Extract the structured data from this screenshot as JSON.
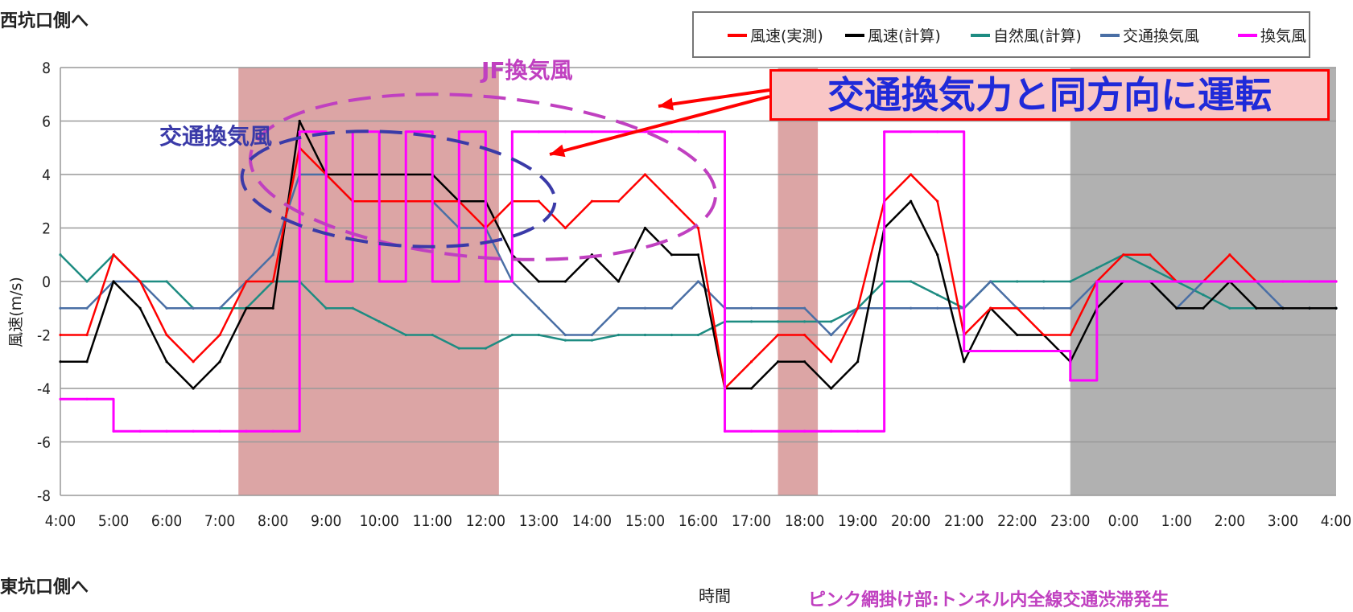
{
  "labels": {
    "west_portal": "西坑口側へ",
    "east_portal": "東坑口側へ",
    "jf_wind": "JF換気風",
    "traffic_wind": "交通換気風",
    "callout": "交通換気力と同方向に運転",
    "footnote": "ピンク網掛け部:トンネル内全線交通渋滞発生"
  },
  "colors": {
    "measured": "#ff0000",
    "calc": "#000000",
    "natural": "#1e8c82",
    "traffic": "#4a6fa5",
    "ventilation": "#ff00ff",
    "congestion_band": "#d89b9b",
    "night_band": "#a9a9a9",
    "annotation_blue": "#3a3aa8",
    "annotation_purple": "#c040c0"
  },
  "chart_data": {
    "type": "line",
    "ylabel": "風速(m/s)",
    "xlabel": "時間",
    "ylim": [
      -8,
      8
    ],
    "yticks": [
      -8,
      -6,
      -4,
      -2,
      0,
      2,
      4,
      6,
      8
    ],
    "xlim": [
      4,
      28
    ],
    "x_tick_labels": [
      "4:00",
      "5:00",
      "6:00",
      "7:00",
      "8:00",
      "9:00",
      "10:00",
      "11:00",
      "12:00",
      "13:00",
      "14:00",
      "15:00",
      "16:00",
      "17:00",
      "18:00",
      "19:00",
      "20:00",
      "21:00",
      "22:00",
      "23:00",
      "0:00",
      "1:00",
      "2:00",
      "3:00",
      "4:00"
    ],
    "grid": true,
    "legend_position": "top-right",
    "shaded_regions": [
      {
        "kind": "congestion",
        "x": [
          7.35,
          12.25
        ]
      },
      {
        "kind": "congestion",
        "x": [
          17.5,
          18.25
        ]
      },
      {
        "kind": "night",
        "x": [
          23.0,
          28.0
        ]
      }
    ],
    "x": [
      4.0,
      4.5,
      5.0,
      5.5,
      6.0,
      6.5,
      7.0,
      7.5,
      8.0,
      8.5,
      9.0,
      9.5,
      10.0,
      10.5,
      11.0,
      11.5,
      12.0,
      12.5,
      13.0,
      13.5,
      14.0,
      14.5,
      15.0,
      15.5,
      16.0,
      16.5,
      17.0,
      17.5,
      18.0,
      18.5,
      19.0,
      19.5,
      20.0,
      20.5,
      21.0,
      21.5,
      22.0,
      22.5,
      23.0,
      23.5,
      24.0,
      24.5,
      25.0,
      25.5,
      26.0,
      26.5,
      27.0,
      27.5,
      28.0
    ],
    "series": [
      {
        "key": "measured",
        "name": "風速(実測)",
        "values": [
          -2,
          -2,
          1,
          0,
          -2,
          -3,
          -2,
          0,
          0,
          5,
          4,
          3,
          3,
          3,
          3,
          3,
          2,
          3,
          3,
          2,
          3,
          3,
          4,
          3,
          2,
          -4,
          -3,
          -2,
          -2,
          -3,
          -1,
          3,
          4,
          3,
          -2,
          -1,
          -1,
          -2,
          -2,
          0,
          1,
          1,
          0,
          0,
          1,
          0,
          0,
          0,
          0
        ]
      },
      {
        "key": "calc",
        "name": "風速(計算)",
        "values": [
          -3,
          -3,
          0,
          -1,
          -3,
          -4,
          -3,
          -1,
          -1,
          6,
          4,
          4,
          4,
          4,
          4,
          3,
          3,
          1,
          0,
          0,
          1,
          0,
          2,
          1,
          1,
          -4,
          -4,
          -3,
          -3,
          -4,
          -3,
          2,
          3,
          1,
          -3,
          -1,
          -2,
          -2,
          -3,
          -1,
          0,
          0,
          -1,
          -1,
          0,
          -1,
          -1,
          -1,
          -1
        ]
      },
      {
        "key": "natural",
        "name": "自然風(計算)",
        "values": [
          1,
          0,
          1,
          0,
          0,
          -1,
          -1,
          -1,
          0,
          0,
          -1,
          -1,
          -1.5,
          -2,
          -2,
          -2.5,
          -2.5,
          -2,
          -2,
          -2.2,
          -2.2,
          -2,
          -2,
          -2,
          -2,
          -1.5,
          -1.5,
          -1.5,
          -1.5,
          -1.5,
          -1,
          0,
          0,
          -0.5,
          -1,
          0,
          0,
          0,
          0,
          0.5,
          1,
          0.5,
          0,
          -0.5,
          -1,
          -1,
          -1,
          -1,
          -1
        ]
      },
      {
        "key": "traffic",
        "name": "交通換気風",
        "values": [
          -1,
          -1,
          0,
          0,
          -1,
          -1,
          -1,
          0,
          1,
          4,
          4,
          3,
          3,
          3,
          3,
          2,
          2,
          0,
          -1,
          -2,
          -2,
          -1,
          -1,
          -1,
          0,
          -1,
          -1,
          -1,
          -1,
          -2,
          -1,
          -1,
          -1,
          -1,
          -1,
          0,
          -1,
          -1,
          -1,
          0,
          0,
          0,
          -1,
          0,
          0,
          0,
          -1,
          -1,
          -1
        ]
      },
      {
        "key": "ventilation",
        "name": "換気風",
        "values": [
          -4.4,
          -4.4,
          -5.6,
          -5.6,
          -5.6,
          -5.6,
          -5.6,
          -5.6,
          -5.6,
          5.6,
          0,
          5.6,
          0,
          5.6,
          0,
          5.6,
          0,
          5.6,
          5.6,
          5.6,
          5.6,
          5.6,
          5.6,
          5.6,
          5.6,
          -5.6,
          -5.6,
          -5.6,
          -5.6,
          -5.6,
          -5.6,
          5.6,
          5.6,
          5.6,
          -2.6,
          -2.6,
          -2.6,
          -2.6,
          -3.7,
          0,
          0,
          0,
          0,
          0,
          0,
          0,
          0,
          0,
          0
        ]
      }
    ]
  }
}
